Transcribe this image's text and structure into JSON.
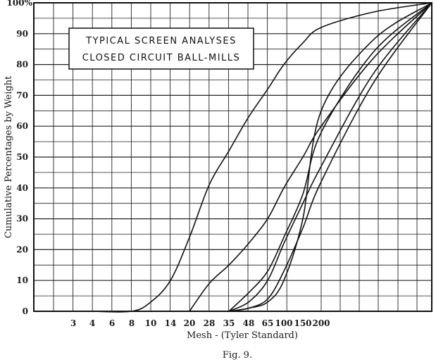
{
  "chart_data": {
    "type": "line",
    "title": [
      "TYPICAL SCREEN ANALYSES",
      "CLOSED CIRCUIT BALL-MILLS"
    ],
    "xlabel": "Mesh - (Tyler Standard)",
    "ylabel": "Cumulative Percentages by Weight",
    "caption": "Fig. 9.",
    "x_ticks": [
      "3",
      "4",
      "6",
      "8",
      "10",
      "14",
      "20",
      "28",
      "35",
      "48",
      "65",
      "100",
      "150",
      "200"
    ],
    "y_ticks": [
      "0",
      "10",
      "20",
      "30",
      "40",
      "50",
      "60",
      "70",
      "80",
      "90",
      "100%"
    ],
    "ylim": [
      0,
      100
    ],
    "grid": true,
    "series": [
      {
        "points": [
          [
            4,
            0
          ],
          [
            8,
            0
          ],
          [
            10,
            3
          ],
          [
            14,
            10
          ],
          [
            20,
            24
          ],
          [
            28,
            41
          ],
          [
            35,
            52
          ],
          [
            48,
            63
          ],
          [
            65,
            72
          ],
          [
            100,
            80
          ],
          [
            150,
            87
          ],
          [
            200,
            92
          ],
          [
            400,
            97
          ],
          [
            1000,
            100
          ]
        ]
      },
      {
        "points": [
          [
            20,
            0
          ],
          [
            28,
            9
          ],
          [
            35,
            15
          ],
          [
            48,
            22
          ],
          [
            65,
            30
          ],
          [
            100,
            40
          ],
          [
            150,
            50
          ],
          [
            200,
            60
          ],
          [
            400,
            82
          ],
          [
            1000,
            100
          ]
        ]
      },
      {
        "points": [
          [
            35,
            0
          ],
          [
            48,
            1
          ],
          [
            65,
            3
          ],
          [
            100,
            10
          ],
          [
            150,
            30
          ],
          [
            200,
            65
          ],
          [
            400,
            88
          ],
          [
            1000,
            100
          ]
        ]
      },
      {
        "points": [
          [
            35,
            0
          ],
          [
            48,
            6
          ],
          [
            65,
            13
          ],
          [
            100,
            24
          ],
          [
            150,
            38
          ],
          [
            200,
            58
          ],
          [
            400,
            84
          ],
          [
            1000,
            100
          ]
        ]
      },
      {
        "points": [
          [
            35,
            0
          ],
          [
            48,
            3
          ],
          [
            65,
            10
          ],
          [
            100,
            22
          ],
          [
            150,
            35
          ],
          [
            200,
            47
          ],
          [
            400,
            77
          ],
          [
            1000,
            100
          ]
        ]
      },
      {
        "points": [
          [
            35,
            0
          ],
          [
            48,
            1
          ],
          [
            65,
            4
          ],
          [
            100,
            13
          ],
          [
            150,
            27
          ],
          [
            200,
            42
          ],
          [
            400,
            74
          ],
          [
            1000,
            100
          ]
        ]
      }
    ]
  }
}
